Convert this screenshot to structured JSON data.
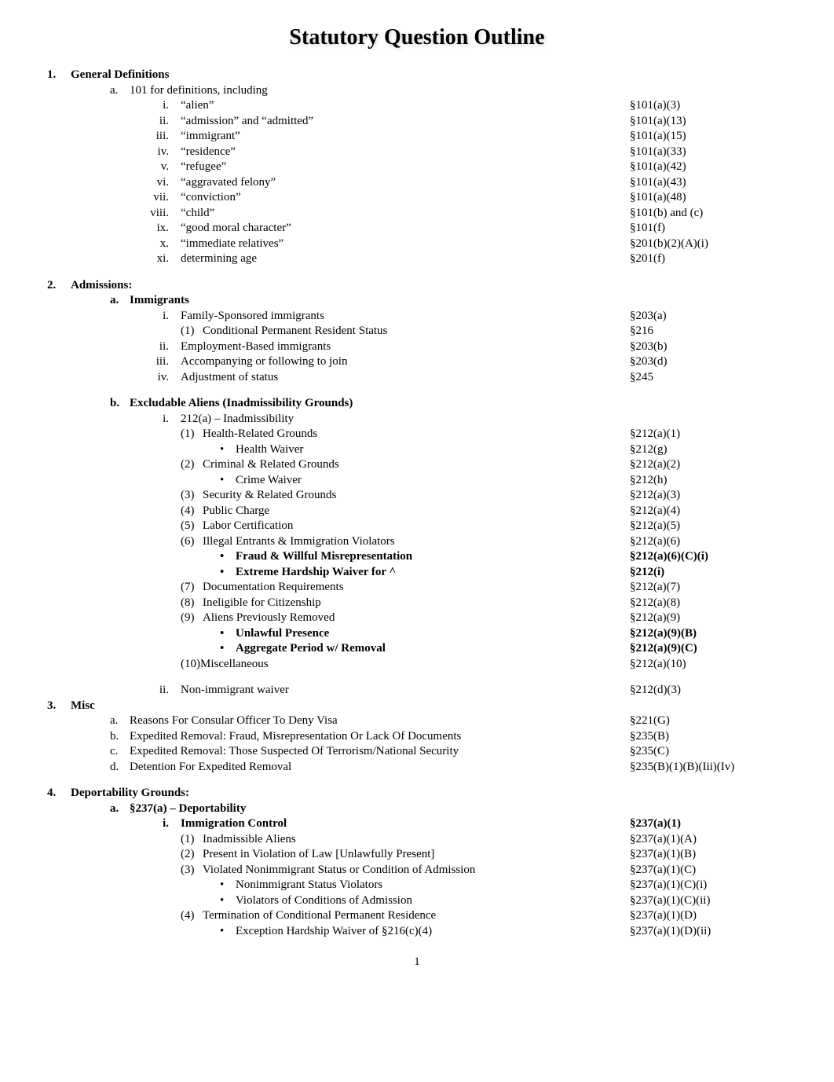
{
  "title": "Statutory Question Outline",
  "page_number": "1",
  "sections": [
    {
      "num": "1.",
      "title": "General Definitions",
      "subs": [
        {
          "letter": "a.",
          "title": "101 for definitions, including",
          "bold": false,
          "romans": [
            {
              "n": "i.",
              "text": "“alien”",
              "cite": "§101(a)(3)"
            },
            {
              "n": "ii.",
              "text": "“admission” and “admitted”",
              "cite": "§101(a)(13)"
            },
            {
              "n": "iii.",
              "text": "“immigrant”",
              "cite": "§101(a)(15)"
            },
            {
              "n": "iv.",
              "text": "“residence”",
              "cite": "§101(a)(33)"
            },
            {
              "n": "v.",
              "text": "“refugee”",
              "cite": "§101(a)(42)"
            },
            {
              "n": "vi.",
              "text": "“aggravated felony”",
              "cite": "§101(a)(43)"
            },
            {
              "n": "vii.",
              "text": "“conviction”",
              "cite": "§101(a)(48)"
            },
            {
              "n": "viii.",
              "text": "“child”",
              "cite": "§101(b) and (c)"
            },
            {
              "n": "ix.",
              "text": "“good moral character”",
              "cite": "§101(f)"
            },
            {
              "n": "x.",
              "text": "“immediate relatives”",
              "cite": "§201(b)(2)(A)(i)"
            },
            {
              "n": "xi.",
              "text": "determining age",
              "cite": "§201(f)"
            }
          ]
        }
      ]
    },
    {
      "num": "2.",
      "title": "Admissions:",
      "subs": [
        {
          "letter": "a.",
          "title": "Immigrants",
          "bold": true,
          "romans": [
            {
              "n": "i.",
              "text": "Family-Sponsored immigrants",
              "cite": "§203(a)",
              "parens": [
                {
                  "n": "(1)",
                  "text": "Conditional Permanent Resident Status",
                  "cite": "§216"
                }
              ]
            },
            {
              "n": "ii.",
              "text": "Employment-Based immigrants",
              "cite": "§203(b)"
            },
            {
              "n": "iii.",
              "text": "Accompanying or following to join",
              "cite": "§203(d)"
            },
            {
              "n": "iv.",
              "text": "Adjustment of status",
              "cite": "§245"
            }
          ]
        },
        {
          "letter": "b.",
          "title": "Excludable Aliens (Inadmissibility Grounds)",
          "bold": true,
          "gap_before": true,
          "romans": [
            {
              "n": "i.",
              "text": "212(a) – Inadmissibility",
              "cite": "",
              "parens": [
                {
                  "n": "(1)",
                  "text": "Health-Related Grounds",
                  "cite": "§212(a)(1)",
                  "bullets": [
                    {
                      "text": "Health Waiver",
                      "cite": "§212(g)"
                    }
                  ]
                },
                {
                  "n": "(2)",
                  "text": "Criminal & Related Grounds",
                  "cite": "§212(a)(2)",
                  "bullets": [
                    {
                      "text": "Crime Waiver",
                      "cite": "§212(h)"
                    }
                  ]
                },
                {
                  "n": "(3)",
                  "text": "Security & Related Grounds",
                  "cite": "§212(a)(3)"
                },
                {
                  "n": "(4)",
                  "text": "Public Charge",
                  "cite": "§212(a)(4)"
                },
                {
                  "n": "(5)",
                  "text": "Labor Certification",
                  "cite": "§212(a)(5)"
                },
                {
                  "n": "(6)",
                  "text": "Illegal Entrants & Immigration Violators",
                  "cite": "§212(a)(6)",
                  "bullets": [
                    {
                      "text": "Fraud & Willful Misrepresentation",
                      "cite": "§212(a)(6)(C)(i)",
                      "bold": true
                    },
                    {
                      "text": "Extreme Hardship Waiver for ^",
                      "cite": "§212(i)",
                      "bold": true
                    }
                  ]
                },
                {
                  "n": "(7)",
                  "text": "Documentation Requirements",
                  "cite": "§212(a)(7)"
                },
                {
                  "n": "(8)",
                  "text": "Ineligible for Citizenship",
                  "cite": "§212(a)(8)"
                },
                {
                  "n": "(9)",
                  "text": "Aliens Previously Removed",
                  "cite": "§212(a)(9)",
                  "bullets": [
                    {
                      "text": "Unlawful Presence",
                      "cite": "§212(a)(9)(B)",
                      "bold": true
                    },
                    {
                      "text": "Aggregate Period w/ Removal",
                      "cite": "§212(a)(9)(C)",
                      "bold": true
                    }
                  ]
                },
                {
                  "n": "(10)",
                  "text": "Miscellaneous",
                  "cite": "§212(a)(10)",
                  "tight": true
                }
              ]
            },
            {
              "n": "ii.",
              "text": "Non-immigrant waiver",
              "cite": "§212(d)(3)",
              "gap_before": true
            }
          ]
        }
      ]
    },
    {
      "num": "3.",
      "title": "Misc",
      "no_gap": true,
      "subs": [
        {
          "letter": "a.",
          "title": "Reasons For Consular Officer To Deny Visa",
          "cite": "§221(G)",
          "simple": true
        },
        {
          "letter": "b.",
          "title": "Expedited Removal: Fraud, Misrepresentation Or Lack Of Documents",
          "cite": "§235(B)",
          "simple": true
        },
        {
          "letter": "c.",
          "title": "Expedited Removal: Those Suspected Of Terrorism/National Security",
          "cite": "§235(C)",
          "simple": true
        },
        {
          "letter": "d.",
          "title": "Detention For Expedited Removal",
          "cite": "§235(B)(1)(B)(Iii)(Iv)",
          "simple": true
        }
      ]
    },
    {
      "num": "4.",
      "title": "Deportability Grounds:",
      "subs": [
        {
          "letter": "a.",
          "title": "§237(a) – Deportability",
          "bold": true,
          "romans": [
            {
              "n": "i.",
              "text": "Immigration Control",
              "cite": "§237(a)(1)",
              "bold": true,
              "parens": [
                {
                  "n": "(1)",
                  "text": "Inadmissible Aliens",
                  "cite": "§237(a)(1)(A)"
                },
                {
                  "n": "(2)",
                  "text": "Present in Violation of Law [Unlawfully Present]",
                  "cite": "§237(a)(1)(B)"
                },
                {
                  "n": "(3)",
                  "text": "Violated Nonimmigrant Status or Condition of Admission",
                  "cite": "§237(a)(1)(C)",
                  "bullets": [
                    {
                      "text": "Nonimmigrant Status Violators",
                      "cite": "§237(a)(1)(C)(i)"
                    },
                    {
                      "text": "Violators of Conditions of Admission",
                      "cite": "§237(a)(1)(C)(ii)"
                    }
                  ]
                },
                {
                  "n": "(4)",
                  "text": "Termination of Conditional Permanent Residence",
                  "cite": "§237(a)(1)(D)",
                  "bullets": [
                    {
                      "text": "Exception Hardship Waiver of §216(c)(4)",
                      "cite": "§237(a)(1)(D)(ii)"
                    }
                  ]
                }
              ]
            }
          ]
        }
      ]
    }
  ]
}
